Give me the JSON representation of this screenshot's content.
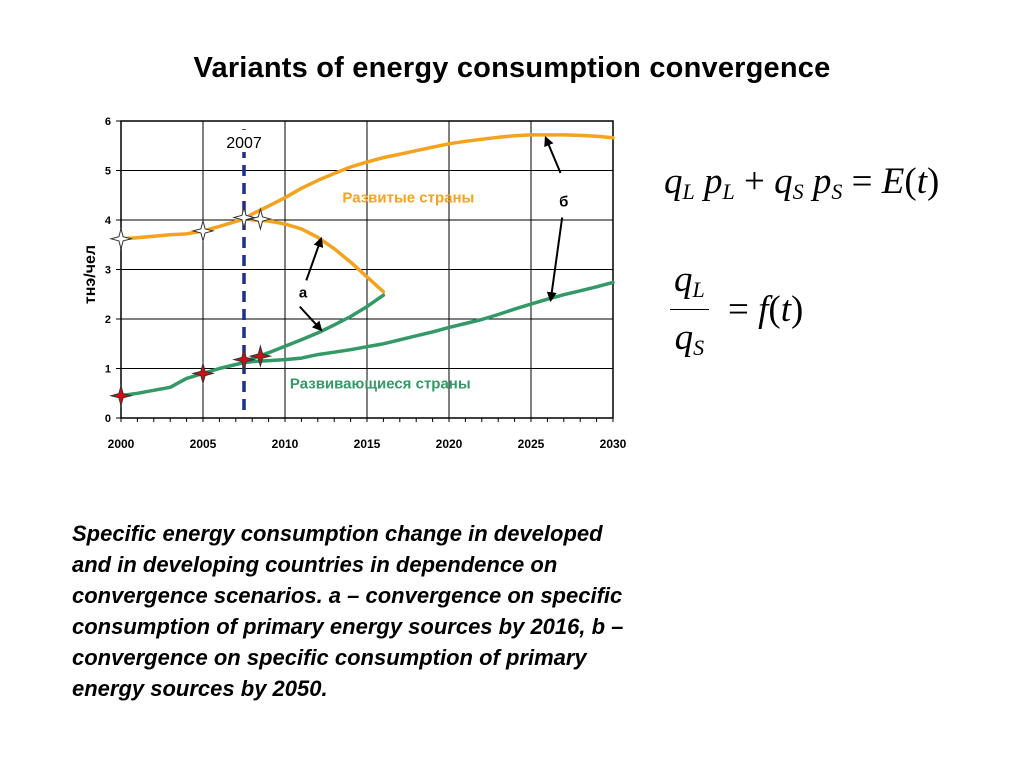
{
  "title": "Variants of energy consumption convergence",
  "chart_data": {
    "type": "line",
    "ylabel": "тнэ/чел",
    "xlabel": "",
    "xlim": [
      2000,
      2030
    ],
    "ylim": [
      0,
      6
    ],
    "x_ticks": [
      "2000",
      "2005",
      "2010",
      "2015",
      "2020",
      "2025",
      "2030"
    ],
    "y_ticks": [
      "0",
      "1",
      "2",
      "3",
      "4",
      "5",
      "6"
    ],
    "grid": true,
    "series": [
      {
        "name": "Развитые страны",
        "color": "#F5A21E",
        "x": [
          2000,
          2001,
          2002,
          2003,
          2004,
          2005,
          2006,
          2007.5,
          2008,
          2009,
          2010,
          2011,
          2012,
          2013,
          2014,
          2015,
          2016,
          2017,
          2018,
          2019,
          2020,
          2021,
          2022,
          2023,
          2024,
          2025,
          2026,
          2027,
          2028,
          2029,
          2030
        ],
        "y": [
          3.62,
          3.64,
          3.67,
          3.7,
          3.72,
          3.78,
          3.87,
          4.02,
          4.12,
          4.28,
          4.45,
          4.64,
          4.8,
          4.94,
          5.07,
          5.17,
          5.26,
          5.33,
          5.4,
          5.47,
          5.54,
          5.59,
          5.63,
          5.67,
          5.7,
          5.72,
          5.72,
          5.72,
          5.71,
          5.69,
          5.66
        ]
      },
      {
        "name": "Развивающиеся страны",
        "color": "#339966",
        "x": [
          2000,
          2001,
          2002,
          2003,
          2004,
          2005,
          2006,
          2007,
          2007.5,
          2008,
          2009,
          2010,
          2011,
          2012,
          2013,
          2014,
          2015,
          2016,
          2017,
          2018,
          2019,
          2020,
          2021,
          2022,
          2023,
          2024,
          2025,
          2026,
          2027,
          2028,
          2029,
          2030
        ],
        "y": [
          0.45,
          0.5,
          0.56,
          0.62,
          0.8,
          0.9,
          1.0,
          1.08,
          1.12,
          1.14,
          1.16,
          1.18,
          1.21,
          1.28,
          1.33,
          1.38,
          1.44,
          1.5,
          1.58,
          1.66,
          1.74,
          1.83,
          1.91,
          1.99,
          2.09,
          2.2,
          2.3,
          2.4,
          2.49,
          2.57,
          2.65,
          2.74
        ]
      },
      {
        "name": "",
        "color": "#F5A21E",
        "x": [
          2008,
          2009,
          2010,
          2011,
          2012,
          2013,
          2014,
          2015,
          2016
        ],
        "y": [
          4.0,
          3.98,
          3.92,
          3.82,
          3.65,
          3.42,
          3.15,
          2.85,
          2.55
        ]
      },
      {
        "name": "",
        "color": "#339966",
        "x": [
          2007.5,
          2008,
          2009,
          2010,
          2011,
          2012,
          2013,
          2014,
          2015,
          2016
        ],
        "y": [
          1.12,
          1.2,
          1.32,
          1.45,
          1.58,
          1.72,
          1.88,
          2.05,
          2.25,
          2.48
        ]
      }
    ],
    "markers": {
      "white_stars": [
        {
          "x": 2000,
          "y": 3.62
        },
        {
          "x": 2005,
          "y": 3.78
        },
        {
          "x": 2007.5,
          "y": 4.05
        },
        {
          "x": 2008.5,
          "y": 4.02
        }
      ],
      "red_stars": [
        {
          "x": 2000,
          "y": 0.45
        },
        {
          "x": 2005,
          "y": 0.9
        },
        {
          "x": 2007.5,
          "y": 1.18
        },
        {
          "x": 2008.5,
          "y": 1.25
        }
      ]
    },
    "vertical_marker": {
      "x": 2007.5,
      "label": "2007",
      "color": "#1F2D8C"
    },
    "annotations": {
      "developed": "Развитые страны",
      "developing": "Развивающиеся страны",
      "a": "а",
      "b": "б"
    },
    "annotation_colors": {
      "developed": "#F5A21E",
      "developing": "#339966"
    }
  },
  "formulas": {
    "eq1": {
      "q": "q",
      "L": "L",
      "p": "p",
      "plus": "+",
      "S": "S",
      "equals": "=",
      "E": "E",
      "t": "t",
      "lparen": "(",
      "rparen": ")"
    },
    "eq2": {
      "q": "q",
      "L": "L",
      "S": "S",
      "equals": "=",
      "f": "f",
      "t": "t",
      "lparen": "(",
      "rparen": ")"
    }
  },
  "caption": "Specific energy consumption change in developed and in developing countries in dependence on convergence scenarios.  a – convergence on specific consumption of primary energy sources by 2016, b – convergence on specific consumption of primary  energy sources by 2050."
}
